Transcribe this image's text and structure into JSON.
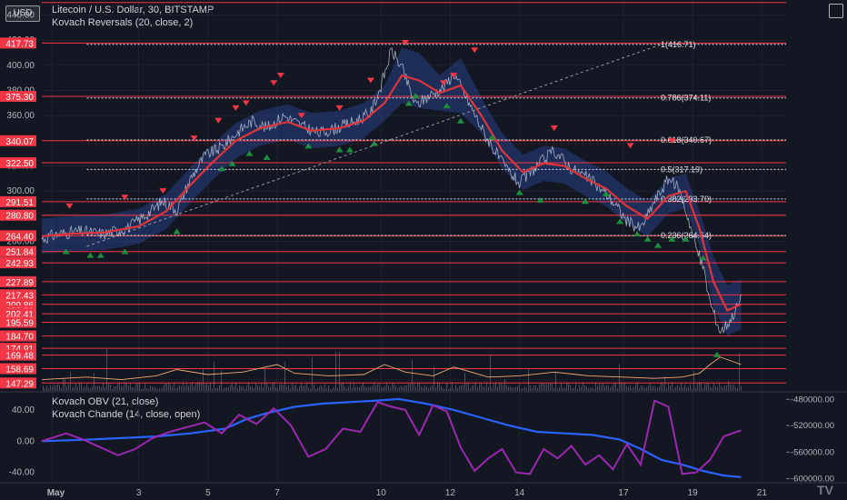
{
  "header": {
    "symbol": "Litecoin / U.S. Dollar, 30, BITSTAMP",
    "indicator": "Kovach Reversals (20, close, 2)",
    "currency_button": "USD"
  },
  "lower_pane": {
    "ind1": "Kovach OBV (21, close)",
    "ind2": "Kovach Chande (14, close, open)"
  },
  "colors": {
    "bg": "#131722",
    "grid": "#1f2330",
    "text": "#d1d4dc",
    "red": "#f23645",
    "green": "#26a69a",
    "band": "#2a4a9a",
    "ma": "#e0343a",
    "obv": "#2962ff",
    "chande": "#9c27b0",
    "volume": "#4a4e58",
    "vol_osc": "#f0a870"
  },
  "chart_data": [
    {
      "type": "line",
      "title": "Litecoin / U.S. Dollar, 30, BITSTAMP",
      "ylim": [
        141,
        452
      ],
      "price_axis_ticks": [
        "440.00",
        "420.00",
        "400.00",
        "380.00",
        "360.00",
        "340.00",
        "320.00",
        "300.00",
        "280.00",
        "260.00"
      ],
      "x_ticks": [
        "May",
        "3",
        "5",
        "7",
        "10",
        "12",
        "14",
        "17",
        "19",
        "21"
      ],
      "x_tick_pos": [
        0.0,
        2.5,
        4.5,
        6.5,
        9.5,
        11.5,
        13.5,
        16.5,
        18.5,
        20.5
      ],
      "xlim": [
        -0.3,
        21.2
      ],
      "price_series": {
        "name": "LTC/USD",
        "x": [
          -0.3,
          0.2,
          0.8,
          1.5,
          2.2,
          2.8,
          3.2,
          3.6,
          4.0,
          4.4,
          4.9,
          5.4,
          5.8,
          6.2,
          6.7,
          7.2,
          7.7,
          8.2,
          8.7,
          9.2,
          9.5,
          9.8,
          10.1,
          10.5,
          10.9,
          11.3,
          11.6,
          12.0,
          12.5,
          13.0,
          13.5,
          14.0,
          14.5,
          15.0,
          15.5,
          16.0,
          16.3,
          16.6,
          17.0,
          17.4,
          17.8,
          18.1,
          18.4,
          18.6,
          18.8,
          19.0,
          19.3,
          19.6,
          19.9
        ],
        "values": [
          262,
          266,
          268,
          266,
          271,
          283,
          292,
          285,
          310,
          328,
          335,
          348,
          356,
          350,
          360,
          352,
          346,
          350,
          355,
          362,
          384,
          412,
          398,
          368,
          376,
          382,
          394,
          372,
          345,
          322,
          306,
          320,
          332,
          318,
          310,
          298,
          288,
          276,
          270,
          292,
          310,
          302,
          276,
          255,
          240,
          212,
          188,
          198,
          214
        ]
      },
      "ma_series": {
        "name": "Kovach Reversals MA",
        "x": [
          -0.3,
          0.5,
          1.5,
          2.5,
          3.3,
          4.0,
          4.6,
          5.3,
          6.0,
          6.8,
          7.5,
          8.3,
          9.0,
          9.6,
          10.1,
          10.6,
          11.2,
          11.8,
          12.4,
          13.0,
          13.6,
          14.2,
          14.8,
          15.4,
          16.0,
          16.6,
          17.2,
          17.8,
          18.3,
          18.7,
          19.1,
          19.5,
          19.9
        ],
        "values": [
          264,
          266,
          267,
          272,
          284,
          305,
          322,
          340,
          350,
          355,
          348,
          350,
          356,
          370,
          392,
          388,
          378,
          384,
          360,
          332,
          315,
          322,
          320,
          310,
          302,
          288,
          278,
          296,
          300,
          270,
          228,
          205,
          210
        ]
      },
      "level_labels": [
        "417.73",
        "375.30",
        "340.07",
        "322.50",
        "291.51",
        "280.80",
        "264.40",
        "251.84",
        "242.93",
        "227.89",
        "217.43",
        "209.86",
        "209.21",
        "10:42",
        "202.41",
        "195.59",
        "184.70",
        "174.91",
        "169.48",
        "158.69",
        "147.29"
      ],
      "horizontal_levels": [
        450,
        417.73,
        375.3,
        340.07,
        322.5,
        291.51,
        280.8,
        264.4,
        251.84,
        242.93,
        227.89,
        217.43,
        209.86,
        202.41,
        195.59,
        184.7,
        174.91,
        169.48,
        158.69,
        147.29
      ],
      "fibonacci": [
        {
          "label": "1(416.71)",
          "price": 416.71
        },
        {
          "label": "0.786(374.11)",
          "price": 374.11
        },
        {
          "label": "0.618(340.67)",
          "price": 340.67
        },
        {
          "label": "0.5(317.19)",
          "price": 317.19
        },
        {
          "label": "0.382(293.70)",
          "price": 293.7
        },
        {
          "label": "0.236(264.64)",
          "price": 264.64
        }
      ],
      "trend_line": {
        "x": [
          1.0,
          17.6
        ],
        "values": [
          256,
          416.7
        ]
      },
      "down_markers": {
        "x": [
          0.5,
          2.1,
          3.2,
          4.1,
          4.8,
          5.3,
          5.6,
          6.4,
          6.6,
          7.2,
          8.3,
          9.2,
          10.2,
          11.3,
          11.6,
          12.2,
          14.5,
          16.7,
          17.9
        ],
        "values": [
          288,
          295,
          300,
          342,
          356,
          366,
          370,
          386,
          392,
          360,
          366,
          388,
          418,
          386,
          392,
          412,
          350,
          336,
          340
        ]
      },
      "up_markers": {
        "x": [
          0.4,
          1.1,
          1.4,
          2.1,
          3.6,
          4.9,
          5.2,
          5.7,
          6.2,
          7.4,
          8.3,
          8.6,
          9.3,
          10.3,
          10.5,
          11.4,
          11.8,
          12.7,
          13.5,
          14.1,
          15.4,
          16.0,
          16.4,
          16.9,
          17.2,
          17.5,
          17.9,
          18.3,
          18.8,
          19.2
        ],
        "values": [
          252,
          249,
          249,
          252,
          268,
          318,
          322,
          330,
          327,
          336,
          333,
          333,
          338,
          370,
          376,
          368,
          356,
          343,
          299,
          293,
          292,
          298,
          276,
          266,
          262,
          257,
          262,
          262,
          247,
          170
        ]
      },
      "volume_osc": {
        "x": [
          -0.3,
          1.0,
          2.0,
          3.0,
          3.6,
          4.5,
          5.5,
          6.5,
          7.0,
          8.0,
          9.0,
          9.6,
          10.2,
          11.0,
          11.6,
          12.6,
          13.5,
          14.5,
          15.5,
          16.5,
          17.4,
          18.2,
          18.7,
          19.0,
          19.3,
          19.9
        ],
        "values": [
          150,
          152,
          150,
          153,
          158,
          154,
          156,
          162,
          155,
          153,
          154,
          162,
          156,
          153,
          160,
          152,
          153,
          156,
          153,
          152,
          151,
          152,
          155,
          162,
          168,
          162
        ]
      }
    },
    {
      "type": "line",
      "ylim": [
        -52,
        62
      ],
      "left_axis_ticks": [
        "40.00",
        "0.00",
        "-40.00"
      ],
      "left_axis_values": [
        40,
        0,
        -40
      ],
      "right_axis_ticks": [
        "-480000.00",
        "-520000.00",
        "-560000.00",
        "-600000.00"
      ],
      "right_axis_pos": [
        53.5,
        20,
        -14,
        -48
      ],
      "series": [
        {
          "name": "Kovach OBV (21, close)",
          "x": [
            -0.3,
            1.0,
            2.0,
            3.0,
            4.0,
            5.0,
            5.6,
            6.2,
            7.0,
            7.8,
            8.6,
            9.4,
            10.0,
            10.8,
            11.6,
            12.4,
            13.2,
            14.0,
            14.8,
            15.6,
            16.4,
            17.0,
            17.6,
            18.2,
            18.8,
            19.4,
            19.9
          ],
          "values": [
            0,
            2,
            4,
            6,
            10,
            16,
            28,
            36,
            44,
            48,
            50,
            52,
            54,
            48,
            40,
            30,
            20,
            12,
            10,
            8,
            2,
            -10,
            -24,
            -30,
            -38,
            -44,
            -46
          ]
        },
        {
          "name": "Kovach Chande (14, close, open)",
          "x": [
            -0.3,
            0.4,
            0.9,
            1.4,
            1.9,
            2.4,
            2.9,
            3.4,
            3.9,
            4.4,
            4.9,
            5.4,
            5.9,
            6.4,
            6.9,
            7.4,
            7.9,
            8.4,
            8.9,
            9.4,
            9.8,
            10.2,
            10.6,
            11.0,
            11.4,
            11.8,
            12.2,
            12.6,
            13.0,
            13.4,
            13.8,
            14.2,
            14.6,
            15.0,
            15.4,
            15.8,
            16.2,
            16.6,
            17.0,
            17.4,
            17.8,
            18.2,
            18.6,
            19.0,
            19.4,
            19.9
          ],
          "values": [
            0,
            10,
            2,
            -8,
            -18,
            -10,
            4,
            12,
            18,
            24,
            10,
            34,
            22,
            42,
            20,
            -20,
            -10,
            16,
            12,
            50,
            44,
            40,
            8,
            46,
            38,
            -8,
            -38,
            -22,
            -10,
            -40,
            -42,
            -10,
            -22,
            -6,
            -30,
            -18,
            -36,
            -4,
            -30,
            52,
            44,
            -42,
            -40,
            -24,
            6,
            14
          ]
        }
      ],
      "volume_osc": null
    }
  ],
  "watermark": "TV"
}
